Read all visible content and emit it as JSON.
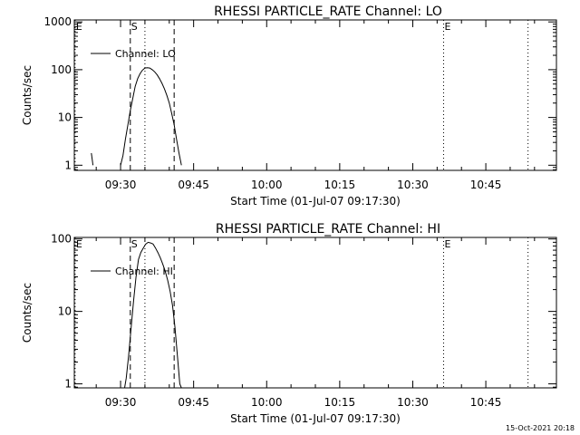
{
  "colors": {
    "background": "#ffffff",
    "foreground": "#000000"
  },
  "footer": {
    "timestamp": "15-Oct-2021 20:18"
  },
  "chart_data": [
    {
      "type": "line",
      "title": "RHESSI PARTICLE_RATE Channel: LO",
      "xlabel": "Start Time (01-Jul-07 09:17:30)",
      "ylabel": "Counts/sec",
      "yscale": "log",
      "xlim": [
        "09:20:30",
        "10:59:30"
      ],
      "ylim": [
        0.78,
        1100
      ],
      "x_ticks": [
        "09:30",
        "09:45",
        "10:00",
        "10:15",
        "10:30",
        "10:45"
      ],
      "y_ticks": [
        {
          "value": 1,
          "label": "1"
        },
        {
          "value": 10,
          "label": "10"
        },
        {
          "value": 100,
          "label": "100"
        },
        {
          "value": 1000,
          "label": "1000"
        }
      ],
      "legend": {
        "position": "top-left",
        "entries": [
          "Channel: LO"
        ]
      },
      "markers": [
        {
          "label": "E",
          "time": "09:20:40",
          "style": "dotted"
        },
        {
          "label": "S",
          "time": "09:32:00",
          "style": "dashed"
        },
        {
          "label": "",
          "time": "09:35:00",
          "style": "dotted"
        },
        {
          "label": "",
          "time": "09:41:00",
          "style": "dashed"
        },
        {
          "label": "E",
          "time": "10:36:20",
          "style": "dotted"
        },
        {
          "label": "",
          "time": "10:53:40",
          "style": "dotted"
        }
      ],
      "series": [
        {
          "name": "Channel: LO",
          "segments": [
            [
              [
                "09:24:00",
                1.8
              ],
              [
                "09:24:20",
                1.0
              ]
            ],
            [
              [
                "09:30:00",
                1.0
              ],
              [
                "09:30:30",
                1.6
              ],
              [
                "09:31:00",
                3.5
              ],
              [
                "09:31:30",
                7
              ],
              [
                "09:32:00",
                14
              ],
              [
                "09:32:30",
                25
              ],
              [
                "09:33:00",
                45
              ],
              [
                "09:33:30",
                65
              ],
              [
                "09:34:00",
                82
              ],
              [
                "09:34:30",
                98
              ],
              [
                "09:35:00",
                108
              ],
              [
                "09:35:30",
                110
              ],
              [
                "09:36:00",
                108
              ],
              [
                "09:36:30",
                100
              ],
              [
                "09:37:00",
                90
              ],
              [
                "09:37:30",
                78
              ],
              [
                "09:38:00",
                65
              ],
              [
                "09:38:30",
                52
              ],
              [
                "09:39:00",
                40
              ],
              [
                "09:39:30",
                29
              ],
              [
                "09:40:00",
                20
              ],
              [
                "09:40:30",
                12
              ],
              [
                "09:41:00",
                7
              ],
              [
                "09:41:30",
                3.5
              ],
              [
                "09:42:00",
                1.8
              ],
              [
                "09:42:30",
                1.0
              ]
            ]
          ]
        }
      ]
    },
    {
      "type": "line",
      "title": "RHESSI PARTICLE_RATE Channel: HI",
      "xlabel": "Start Time (01-Jul-07 09:17:30)",
      "ylabel": "Counts/sec",
      "yscale": "log",
      "xlim": [
        "09:20:30",
        "10:59:30"
      ],
      "ylim": [
        0.88,
        105
      ],
      "x_ticks": [
        "09:30",
        "09:45",
        "10:00",
        "10:15",
        "10:30",
        "10:45"
      ],
      "y_ticks": [
        {
          "value": 1,
          "label": "1"
        },
        {
          "value": 10,
          "label": "10"
        },
        {
          "value": 100,
          "label": "100"
        }
      ],
      "legend": {
        "position": "top-left",
        "entries": [
          "Channel: HI"
        ]
      },
      "markers": [
        {
          "label": "E",
          "time": "09:20:40",
          "style": "dotted"
        },
        {
          "label": "S",
          "time": "09:32:00",
          "style": "dashed"
        },
        {
          "label": "",
          "time": "09:35:00",
          "style": "dotted"
        },
        {
          "label": "",
          "time": "09:41:00",
          "style": "dashed"
        },
        {
          "label": "E",
          "time": "10:36:20",
          "style": "dotted"
        },
        {
          "label": "",
          "time": "10:53:40",
          "style": "dotted"
        }
      ],
      "series": [
        {
          "name": "Channel: HI",
          "segments": [
            [
              [
                "09:30:50",
                0.88
              ],
              [
                "09:31:10",
                1.2
              ],
              [
                "09:31:40",
                2.5
              ],
              [
                "09:32:10",
                6
              ],
              [
                "09:32:40",
                14
              ],
              [
                "09:33:10",
                30
              ],
              [
                "09:33:40",
                52
              ],
              [
                "09:34:10",
                65
              ],
              [
                "09:34:40",
                75
              ],
              [
                "09:35:10",
                85
              ],
              [
                "09:35:40",
                90
              ],
              [
                "09:36:10",
                88
              ],
              [
                "09:36:40",
                85
              ],
              [
                "09:37:10",
                75
              ],
              [
                "09:37:40",
                65
              ],
              [
                "09:38:10",
                55
              ],
              [
                "09:38:40",
                45
              ],
              [
                "09:39:10",
                36
              ],
              [
                "09:39:40",
                27
              ],
              [
                "09:40:10",
                19
              ],
              [
                "09:40:40",
                12
              ],
              [
                "09:41:10",
                6
              ],
              [
                "09:41:40",
                2.5
              ],
              [
                "09:42:10",
                1.0
              ],
              [
                "09:42:30",
                0.88
              ]
            ]
          ]
        }
      ]
    }
  ]
}
